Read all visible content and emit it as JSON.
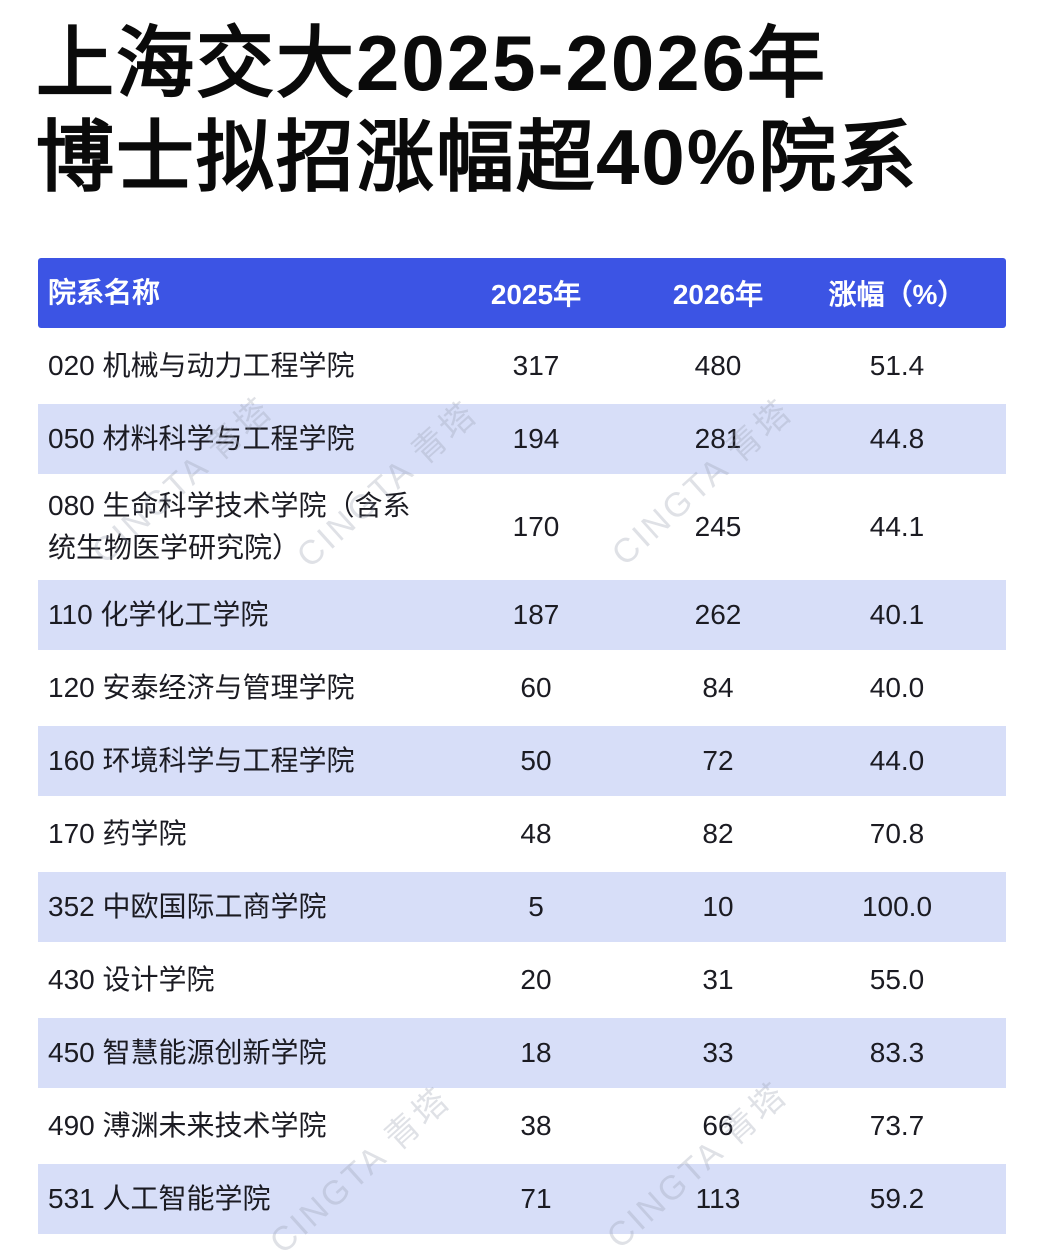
{
  "title": {
    "line1": "上海交大2025-2026年",
    "line2": "博士拟招涨幅超40%院系"
  },
  "colors": {
    "header_bg": "#3C54E4",
    "header_text": "#ffffff",
    "stripe_bg": "#D7DEF8",
    "body_text": "#1b1b22",
    "title_text": "#0a0a0a"
  },
  "watermark": {
    "text": "CINGTA 青塔"
  },
  "table": {
    "header": {
      "name": "院系名称",
      "y2025": "2025年",
      "y2026": "2026年",
      "pct": "涨幅（%）"
    },
    "rows": [
      {
        "name": "020 机械与动力工程学院",
        "y2025": "317",
        "y2026": "480",
        "pct": "51.4"
      },
      {
        "name": "050 材料科学与工程学院",
        "y2025": "194",
        "y2026": "281",
        "pct": "44.8"
      },
      {
        "name": "080 生命科学技术学院（含系统生物医学研究院）",
        "y2025": "170",
        "y2026": "245",
        "pct": "44.1"
      },
      {
        "name": "110 化学化工学院",
        "y2025": "187",
        "y2026": "262",
        "pct": "40.1"
      },
      {
        "name": "120 安泰经济与管理学院",
        "y2025": "60",
        "y2026": "84",
        "pct": "40.0"
      },
      {
        "name": "160 环境科学与工程学院",
        "y2025": "50",
        "y2026": "72",
        "pct": "44.0"
      },
      {
        "name": "170 药学院",
        "y2025": "48",
        "y2026": "82",
        "pct": "70.8"
      },
      {
        "name": "352 中欧国际工商学院",
        "y2025": "5",
        "y2026": "10",
        "pct": "100.0"
      },
      {
        "name": "430 设计学院",
        "y2025": "20",
        "y2026": "31",
        "pct": "55.0"
      },
      {
        "name": "450 智慧能源创新学院",
        "y2025": "18",
        "y2026": "33",
        "pct": "83.3"
      },
      {
        "name": "490 溥渊未来技术学院",
        "y2025": "38",
        "y2026": "66",
        "pct": "73.7"
      },
      {
        "name": "531 人工智能学院",
        "y2025": "71",
        "y2026": "113",
        "pct": "59.2"
      }
    ]
  },
  "chart_data": {
    "type": "table",
    "title": "上海交大2025-2026年博士拟招涨幅超40%院系",
    "columns": [
      "院系名称",
      "2025年",
      "2026年",
      "涨幅（%）"
    ],
    "rows": [
      [
        "020 机械与动力工程学院",
        317,
        480,
        51.4
      ],
      [
        "050 材料科学与工程学院",
        194,
        281,
        44.8
      ],
      [
        "080 生命科学技术学院（含系统生物医学研究院）",
        170,
        245,
        44.1
      ],
      [
        "110 化学化工学院",
        187,
        262,
        40.1
      ],
      [
        "120 安泰经济与管理学院",
        60,
        84,
        40.0
      ],
      [
        "160 环境科学与工程学院",
        50,
        72,
        44.0
      ],
      [
        "170 药学院",
        48,
        82,
        70.8
      ],
      [
        "352 中欧国际工商学院",
        5,
        10,
        100.0
      ],
      [
        "430 设计学院",
        20,
        31,
        55.0
      ],
      [
        "450 智慧能源创新学院",
        18,
        33,
        83.3
      ],
      [
        "490 溥渊未来技术学院",
        38,
        66,
        73.7
      ],
      [
        "531 人工智能学院",
        71,
        113,
        59.2
      ]
    ]
  }
}
